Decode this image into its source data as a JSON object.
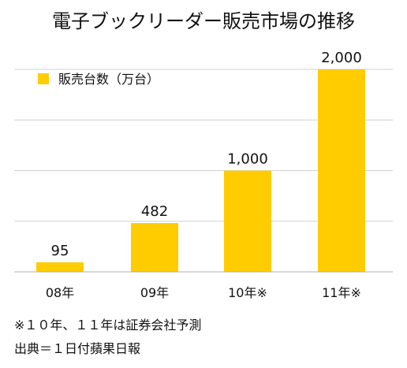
{
  "chart_data": {
    "type": "bar",
    "title": "電子ブックリーダー販売市場の推移",
    "legend": {
      "label": "販売台数（万台）",
      "placement": "top-left"
    },
    "categories": [
      "08年",
      "09年",
      "10年※",
      "11年※"
    ],
    "series": [
      {
        "name": "販売台数（万台）",
        "values": [
          95,
          482,
          1000,
          2000
        ],
        "value_labels": [
          "95",
          "482",
          "1,000",
          "2,000"
        ],
        "color": "#FFCC00"
      }
    ],
    "ylim": [
      0,
      2000
    ],
    "grid": true,
    "gridline_values": [
      500,
      1000,
      1500,
      2000
    ],
    "footnotes": [
      "※１０年、１１年は証券会社予測",
      "出典＝１日付蘋果日報"
    ]
  }
}
